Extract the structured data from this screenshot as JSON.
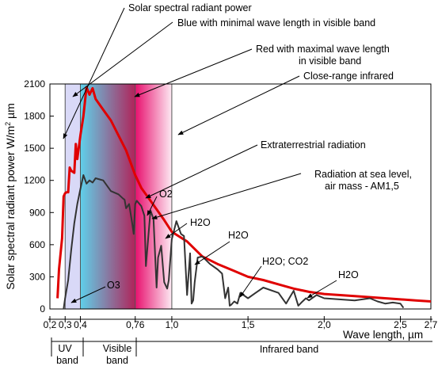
{
  "chart_data": {
    "type": "line",
    "title": "",
    "ylabel_main": "Solar spectral radiant power W/m",
    "ylabel_sup": "2",
    "ylabel_unit": " µm",
    "xlabel": "Wave length, µm",
    "xlim": [
      0.2,
      2.7
    ],
    "ylim": [
      0,
      2100
    ],
    "x_ticks": [
      {
        "value": 0.2,
        "label": "0,2"
      },
      {
        "value": 0.3,
        "label": "0,3"
      },
      {
        "value": 0.4,
        "label": "0,4"
      },
      {
        "value": 0.76,
        "label": "0,76"
      },
      {
        "value": 1.0,
        "label": "1,0"
      },
      {
        "value": 1.5,
        "label": "1,5"
      },
      {
        "value": 2.0,
        "label": "2,0"
      },
      {
        "value": 2.5,
        "label": "2,5"
      },
      {
        "value": 2.7,
        "label": "2,7"
      }
    ],
    "y_ticks": [
      {
        "value": 0,
        "label": "0"
      },
      {
        "value": 300,
        "label": "300"
      },
      {
        "value": 600,
        "label": "600"
      },
      {
        "value": 900,
        "label": "900"
      },
      {
        "value": 1200,
        "label": "1200"
      },
      {
        "value": 1500,
        "label": "1500"
      },
      {
        "value": 1800,
        "label": "1800"
      },
      {
        "value": 2100,
        "label": "2100"
      }
    ],
    "regions": [
      {
        "from": 0.3,
        "to": 0.4,
        "colors": [
          "#d9d9f7",
          "#d9d9f7"
        ]
      },
      {
        "from": 0.4,
        "to": 0.76,
        "colors": [
          "#5fd0ea",
          "#b0245a"
        ]
      },
      {
        "from": 0.76,
        "to": 1.0,
        "colors": [
          "#e8106e",
          "#fdeaf3"
        ]
      }
    ],
    "region_lines": [
      0.3,
      0.4,
      0.76,
      1.0
    ],
    "series": [
      {
        "key": "extraterrestrial",
        "color": "#e00000",
        "x": [
          0.25,
          0.26,
          0.28,
          0.29,
          0.3,
          0.31,
          0.32,
          0.33,
          0.34,
          0.36,
          0.37,
          0.38,
          0.4,
          0.42,
          0.44,
          0.46,
          0.48,
          0.5,
          0.55,
          0.6,
          0.65,
          0.7,
          0.76,
          0.8,
          0.85,
          0.9,
          0.95,
          1.0,
          1.1,
          1.2,
          1.3,
          1.4,
          1.5,
          1.6,
          1.7,
          1.8,
          1.9,
          2.0,
          2.2,
          2.4,
          2.6,
          2.7
        ],
        "y": [
          100,
          370,
          660,
          1050,
          1080,
          1090,
          1090,
          1320,
          1290,
          1270,
          1540,
          1400,
          1620,
          1800,
          2070,
          2000,
          2060,
          1960,
          1860,
          1760,
          1620,
          1480,
          1250,
          1130,
          1030,
          930,
          830,
          720,
          630,
          490,
          420,
          360,
          300,
          270,
          230,
          190,
          160,
          140,
          120,
          100,
          80,
          70
        ]
      },
      {
        "key": "sea_level",
        "color": "#333333",
        "x": [
          0.29,
          0.3,
          0.32,
          0.34,
          0.36,
          0.38,
          0.4,
          0.42,
          0.44,
          0.46,
          0.48,
          0.5,
          0.55,
          0.6,
          0.65,
          0.68,
          0.69,
          0.7,
          0.72,
          0.74,
          0.75,
          0.76,
          0.77,
          0.8,
          0.82,
          0.83,
          0.86,
          0.88,
          0.9,
          0.91,
          0.93,
          0.95,
          0.97,
          0.98,
          1.0,
          1.03,
          1.06,
          1.08,
          1.1,
          1.12,
          1.13,
          1.14,
          1.15,
          1.17,
          1.2,
          1.25,
          1.3,
          1.33,
          1.35,
          1.37,
          1.38,
          1.39,
          1.41,
          1.43,
          1.45,
          1.5,
          1.55,
          1.6,
          1.7,
          1.75,
          1.8,
          1.83,
          1.85,
          1.88,
          1.9,
          1.95,
          2.0,
          2.2,
          2.3,
          2.35,
          2.4,
          2.45,
          2.5,
          2.52
        ],
        "y": [
          0,
          100,
          270,
          550,
          800,
          980,
          1120,
          1250,
          1170,
          1200,
          1180,
          1220,
          1200,
          1100,
          1070,
          1030,
          1020,
          940,
          980,
          800,
          700,
          980,
          1010,
          960,
          870,
          400,
          920,
          840,
          200,
          480,
          590,
          250,
          190,
          270,
          650,
          820,
          700,
          680,
          130,
          520,
          50,
          80,
          250,
          480,
          490,
          420,
          370,
          330,
          100,
          200,
          30,
          40,
          70,
          50,
          150,
          100,
          150,
          200,
          150,
          50,
          170,
          30,
          60,
          100,
          80,
          130,
          100,
          80,
          100,
          70,
          50,
          60,
          50,
          10
        ]
      }
    ]
  },
  "annotations": {
    "solar_power": "Solar spectral radiant power",
    "blue": "Blue with minimal wave length in visible band",
    "red_line1": "Red with maximal wave length",
    "red_line2": "in visible band",
    "close_ir": "Close-range infrared",
    "extraterrestrial": "Extraterrestrial radiation",
    "sea_level_line1": "Radiation at sea level,",
    "sea_level_line2": "air mass - AM1,5",
    "o2": "O2",
    "h2o_1": "H2O",
    "h2o_2": "H2O",
    "h2o_co2": "H2O; CO2",
    "h2o_3": "H2O",
    "o3": "O3"
  },
  "bands": {
    "uv_line1": "UV",
    "uv_line2": "band",
    "visible_line1": "Visible",
    "visible_line2": "band",
    "infrared": "Infrared band"
  }
}
